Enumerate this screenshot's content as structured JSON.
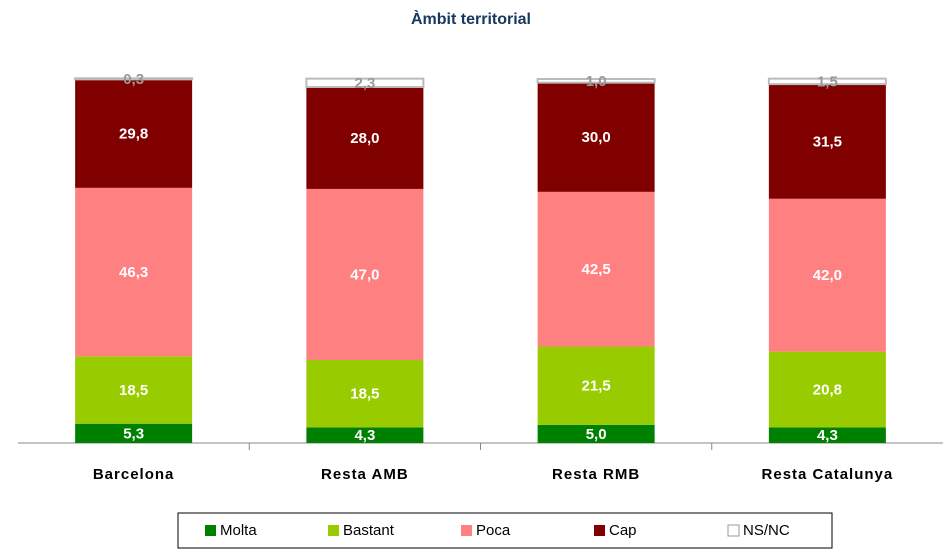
{
  "chart_data": {
    "type": "stacked_bar",
    "title": "Àmbit territorial",
    "categories": [
      "Barcelona",
      "Resta AMB",
      "Resta RMB",
      "Resta Catalunya"
    ],
    "series": [
      {
        "name": "Molta",
        "color": "#008000",
        "values": [
          5.3,
          4.3,
          5.0,
          4.3
        ],
        "value_labels": [
          "5,3",
          "4,3",
          "5,0",
          "4,3"
        ]
      },
      {
        "name": "Bastant",
        "color": "#99cc00",
        "values": [
          18.5,
          18.5,
          21.5,
          20.8
        ],
        "value_labels": [
          "18,5",
          "18,5",
          "21,5",
          "20,8"
        ]
      },
      {
        "name": "Poca",
        "color": "#ff8080",
        "values": [
          46.3,
          47.0,
          42.5,
          42.0
        ],
        "value_labels": [
          "46,3",
          "47,0",
          "42,5",
          "42,0"
        ]
      },
      {
        "name": "Cap",
        "color": "#800000",
        "values": [
          29.8,
          28.0,
          30.0,
          31.5
        ],
        "value_labels": [
          "29,8",
          "28,0",
          "30,0",
          "31,5"
        ]
      },
      {
        "name": "NS/NC",
        "color": "#ffffff",
        "values": [
          0.3,
          2.3,
          1.0,
          1.5
        ],
        "value_labels": [
          "0,3",
          "2,3",
          "1,0",
          "1,5"
        ]
      }
    ],
    "legend": "bottom"
  }
}
